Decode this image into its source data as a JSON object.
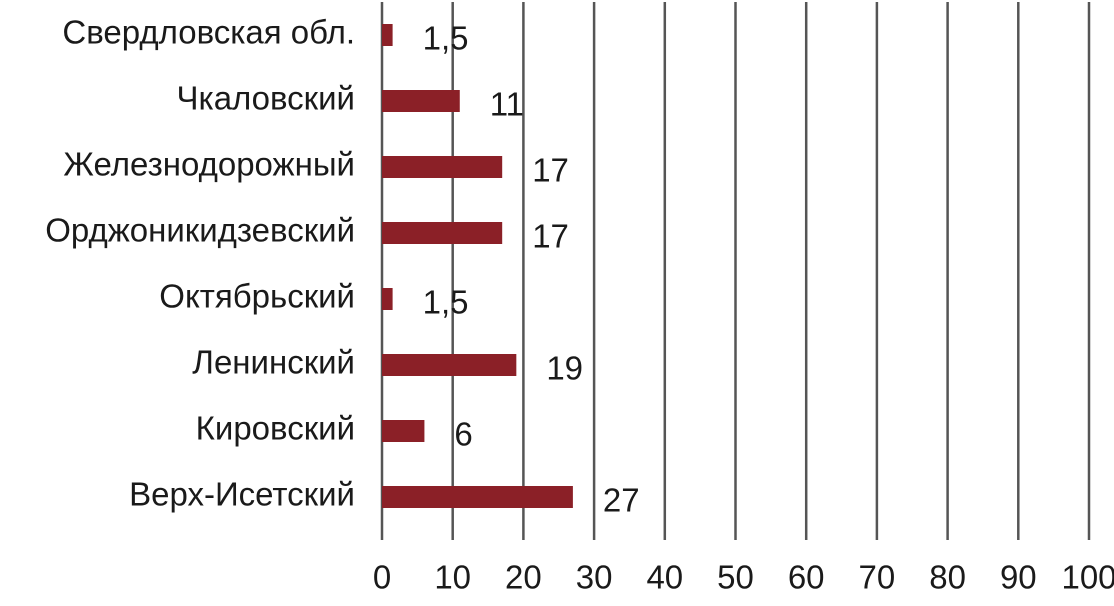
{
  "chart_data": {
    "type": "bar",
    "orientation": "horizontal",
    "categories": [
      "Свердловская обл.",
      "Чкаловский",
      "Железнодорожный",
      "Орджоникидзевский",
      "Октябрьский",
      "Ленинский",
      "Кировский",
      "Верх-Исетский"
    ],
    "values": [
      1.5,
      11,
      17,
      17,
      1.5,
      19,
      6,
      27
    ],
    "value_labels": [
      "1,5",
      "11",
      "17",
      "17",
      "1,5",
      "19",
      "6",
      "27"
    ],
    "color": "#8b2027",
    "xlim": [
      0,
      100
    ],
    "xticks": [
      0,
      10,
      20,
      30,
      40,
      50,
      60,
      70,
      80,
      90,
      100
    ],
    "grid": true
  }
}
